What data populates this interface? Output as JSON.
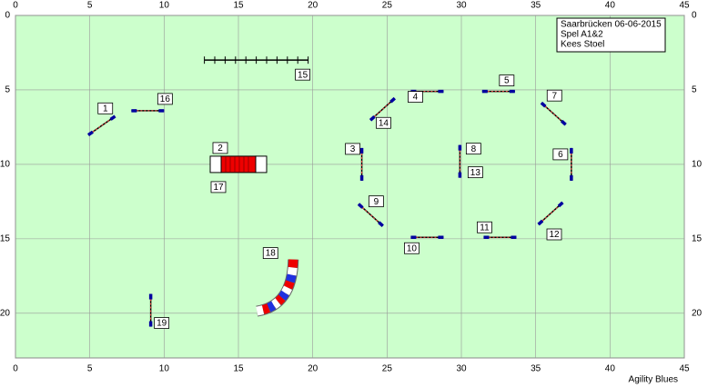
{
  "axes": {
    "xlim": [
      0,
      45
    ],
    "ylim": [
      0,
      23
    ],
    "xticks": [
      0,
      5,
      10,
      15,
      20,
      25,
      30,
      35,
      40,
      45
    ],
    "yticks": [
      0,
      5,
      10,
      15,
      20
    ]
  },
  "info": [
    "Saarbrücken 06-06-2015",
    "Spel A1&2",
    "Kees Stoel"
  ],
  "footer": "Agility Blues",
  "obstacles": [
    {
      "labels": [
        "1"
      ],
      "x": 5.8,
      "y": 7.4
    },
    {
      "labels": [
        "16"
      ],
      "x": 8.9,
      "y": 6.4
    },
    {
      "labels": [
        "2",
        "17"
      ],
      "x": 15.0,
      "y": 10.0
    },
    {
      "labels": [
        "15"
      ],
      "x": 16.2,
      "y": 3.0
    },
    {
      "labels": [
        "4"
      ],
      "x": 27.7,
      "y": 5.1
    },
    {
      "labels": [
        "5"
      ],
      "x": 32.5,
      "y": 5.1
    },
    {
      "labels": [
        "14"
      ],
      "x": 24.7,
      "y": 6.3
    },
    {
      "labels": [
        "7"
      ],
      "x": 36.2,
      "y": 6.6
    },
    {
      "labels": [
        "3"
      ],
      "x": 23.3,
      "y": 10.0
    },
    {
      "labels": [
        "8",
        "13"
      ],
      "x": 29.9,
      "y": 9.8
    },
    {
      "labels": [
        "6"
      ],
      "x": 37.4,
      "y": 10.0
    },
    {
      "labels": [
        "9"
      ],
      "x": 23.9,
      "y": 13.4
    },
    {
      "labels": [
        "12"
      ],
      "x": 36.0,
      "y": 13.3
    },
    {
      "labels": [
        "10"
      ],
      "x": 27.7,
      "y": 14.9
    },
    {
      "labels": [
        "11"
      ],
      "x": 32.6,
      "y": 14.9
    },
    {
      "labels": [
        "18"
      ],
      "x": 18.2,
      "y": 18.4
    },
    {
      "labels": [
        "19"
      ],
      "x": 9.1,
      "y": 19.8
    }
  ]
}
